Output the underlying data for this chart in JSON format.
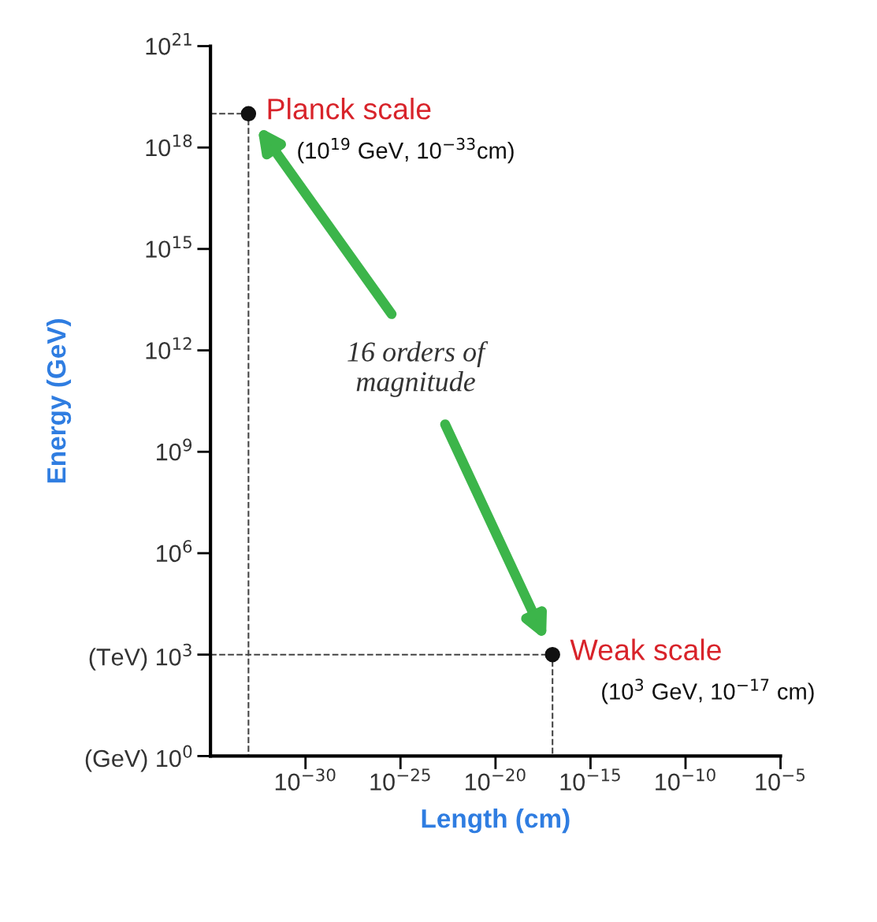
{
  "chart_data": {
    "type": "scatter",
    "xlabel": "Length (cm)",
    "ylabel": "Energy (GeV)",
    "log": "xy",
    "xlim": [
      1e-35,
      1e-05
    ],
    "ylim": [
      1,
      1e+21
    ],
    "xticks": [
      {
        "value": 1e-30,
        "label": "10$^{−30}$"
      },
      {
        "value": 1e-25,
        "label": "10$^{−25}$"
      },
      {
        "value": 1e-20,
        "label": "10$^{−20}$"
      },
      {
        "value": 1e-15,
        "label": "10$^{−15}$"
      },
      {
        "value": 1e-10,
        "label": "10$^{−10}$"
      },
      {
        "value": 1e-05,
        "label": "10$^{−5}$"
      }
    ],
    "yticks": [
      {
        "value": 1,
        "label": "(GeV) 10$^{0}$"
      },
      {
        "value": 1000.0,
        "label": "(TeV) 10$^{3}$"
      },
      {
        "value": 1000000.0,
        "label": "10$^{6}$"
      },
      {
        "value": 1000000000.0,
        "label": "10$^{9}$"
      },
      {
        "value": 1000000000000.0,
        "label": "10$^{12}$"
      },
      {
        "value": 1000000000000000.0,
        "label": "10$^{15}$"
      },
      {
        "value": 1e+18,
        "label": "10$^{18}$"
      },
      {
        "value": 1e+21,
        "label": "10$^{21}$"
      }
    ],
    "series": [
      {
        "type": "line",
        "color": "#444444",
        "line_style": "dashed",
        "marker": "none",
        "x": [
          1e-35,
          1e-33,
          1e-33
        ],
        "values": [
          1e+19,
          1e+19,
          1
        ]
      },
      {
        "type": "line",
        "color": "#444444",
        "line_style": "dashed",
        "marker": "none",
        "x": [
          1e-35,
          1e-17,
          1e-17
        ],
        "values": [
          1000.0,
          1000.0,
          1
        ]
      },
      {
        "name": "Planck scale",
        "color": "#111111",
        "marker": "circle",
        "x": [
          1e-33
        ],
        "values": [
          1e+19
        ]
      },
      {
        "name": "Weak scale",
        "color": "#111111",
        "marker": "circle",
        "x": [
          1e-17
        ],
        "values": [
          1000.0
        ]
      }
    ],
    "annotations": [
      {
        "text": "(10$^{19}$ GeV, 10$^{−33}$cm)",
        "x": 1e-33,
        "y": 1e+19
      },
      {
        "text": "(10$^{3}$ GeV, 10$^{−17}$ cm)",
        "x": 1e-17,
        "y": 1000.0
      },
      "16 orders of\nmagnitude"
    ],
    "grid": false,
    "legend": false
  }
}
